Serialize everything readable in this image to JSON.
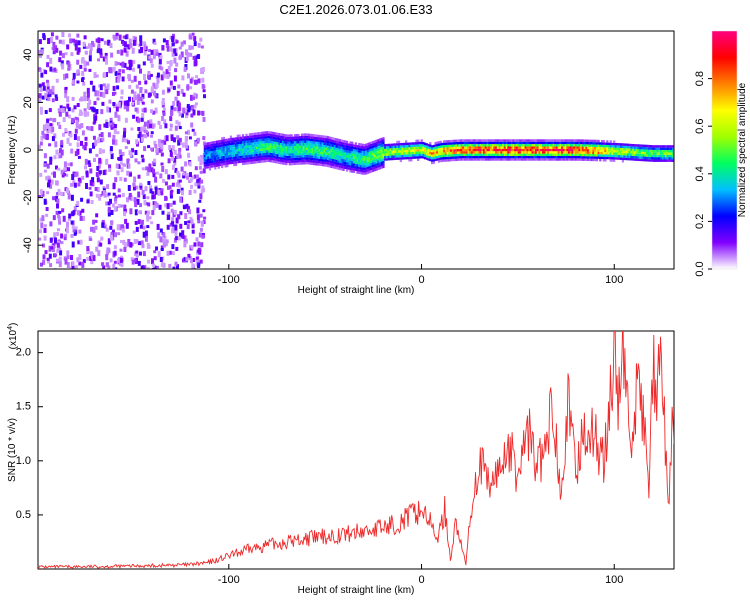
{
  "chart_data": [
    {
      "type": "heatmap",
      "title": "C2E1.2026.073.01.06.E33",
      "xlabel": "Height of straight line (km)",
      "ylabel": "Frequency (Hz)",
      "xlim": [
        -199,
        131
      ],
      "ylim": [
        -50,
        50
      ],
      "xticks": [
        -100,
        0,
        100
      ],
      "xtick_labels": [
        "-100",
        "0",
        "100"
      ],
      "yticks": [
        -40,
        -20,
        0,
        20,
        40
      ],
      "ytick_labels": [
        "-40",
        "-20",
        "0",
        "20",
        "40"
      ],
      "colorbar": {
        "label": "Normalized spectral amplitude",
        "range": [
          0,
          1
        ],
        "ticks": [
          0.0,
          0.2,
          0.4,
          0.6,
          0.8
        ],
        "tick_labels": [
          "0.0",
          "0.2",
          "0.4",
          "0.6",
          "0.8"
        ],
        "colors": [
          "#ffffff",
          "#8000ff",
          "#0000ff",
          "#00c0ff",
          "#00ff60",
          "#a0ff00",
          "#ffff00",
          "#ff8000",
          "#ff0000",
          "#ff0080"
        ]
      },
      "noise_region_end_km": -113,
      "ridge": {
        "x": [
          -113,
          -100,
          -90,
          -80,
          -70,
          -60,
          -50,
          -40,
          -30,
          -25,
          -20,
          -10,
          0,
          5,
          10,
          20,
          30,
          40,
          50,
          60,
          70,
          80,
          90,
          100,
          110,
          120,
          130
        ],
        "freq_hz": [
          -2,
          0,
          1,
          2,
          0.5,
          1,
          0,
          -2,
          -3.5,
          -2,
          -0.5,
          0,
          0.5,
          -1,
          0,
          0.5,
          0.5,
          0.5,
          0.5,
          0.5,
          0.5,
          0.5,
          0.3,
          0,
          -0.5,
          -1,
          -1
        ],
        "amplitude": [
          0.3,
          0.35,
          0.4,
          0.45,
          0.42,
          0.45,
          0.45,
          0.4,
          0.45,
          0.5,
          0.55,
          0.6,
          0.65,
          0.7,
          0.75,
          0.85,
          0.85,
          0.9,
          0.9,
          0.9,
          0.9,
          0.9,
          0.85,
          0.6,
          0.55,
          0.5,
          0.5
        ]
      }
    },
    {
      "type": "line",
      "xlabel": "Height of straight line (km)",
      "ylabel": "SNR (10 * v/v)",
      "y_multiplier_label": "(x10",
      "y_multiplier_exp": "4",
      "xlim": [
        -199,
        131
      ],
      "ylim": [
        0,
        2.2
      ],
      "xticks": [
        -100,
        0,
        100
      ],
      "xtick_labels": [
        "-100",
        "0",
        "100"
      ],
      "yticks": [
        0.5,
        1.0,
        1.5,
        2.0
      ],
      "ytick_labels": [
        "0.5",
        "1.0",
        "1.5",
        "2.0"
      ],
      "line_color": "#ee2a2a",
      "series": [
        {
          "name": "SNR",
          "x": [
            -199,
            -180,
            -160,
            -140,
            -120,
            -110,
            -100,
            -90,
            -80,
            -70,
            -60,
            -50,
            -40,
            -30,
            -20,
            -10,
            -5,
            0,
            3,
            6,
            9,
            12,
            15,
            18,
            20,
            23,
            26,
            30,
            35,
            40,
            45,
            50,
            55,
            60,
            65,
            68,
            72,
            76,
            80,
            85,
            90,
            95,
            100,
            103,
            105,
            108,
            112,
            115,
            118,
            120,
            122,
            124,
            126,
            128,
            130,
            131
          ],
          "y": [
            0.02,
            0.02,
            0.025,
            0.03,
            0.04,
            0.06,
            0.12,
            0.18,
            0.22,
            0.25,
            0.28,
            0.3,
            0.32,
            0.35,
            0.38,
            0.45,
            0.5,
            0.55,
            0.5,
            0.35,
            0.3,
            0.55,
            0.1,
            0.45,
            0.25,
            0.05,
            0.6,
            1.0,
            0.75,
            0.9,
            1.15,
            0.85,
            1.3,
            0.95,
            1.1,
            1.55,
            0.8,
            1.5,
            0.9,
            1.35,
            1.2,
            1.0,
            2.0,
            1.5,
            2.1,
            1.1,
            1.7,
            1.35,
            0.8,
            1.9,
            1.45,
            1.95,
            1.3,
            0.5,
            1.4,
            1.05
          ]
        }
      ]
    }
  ]
}
